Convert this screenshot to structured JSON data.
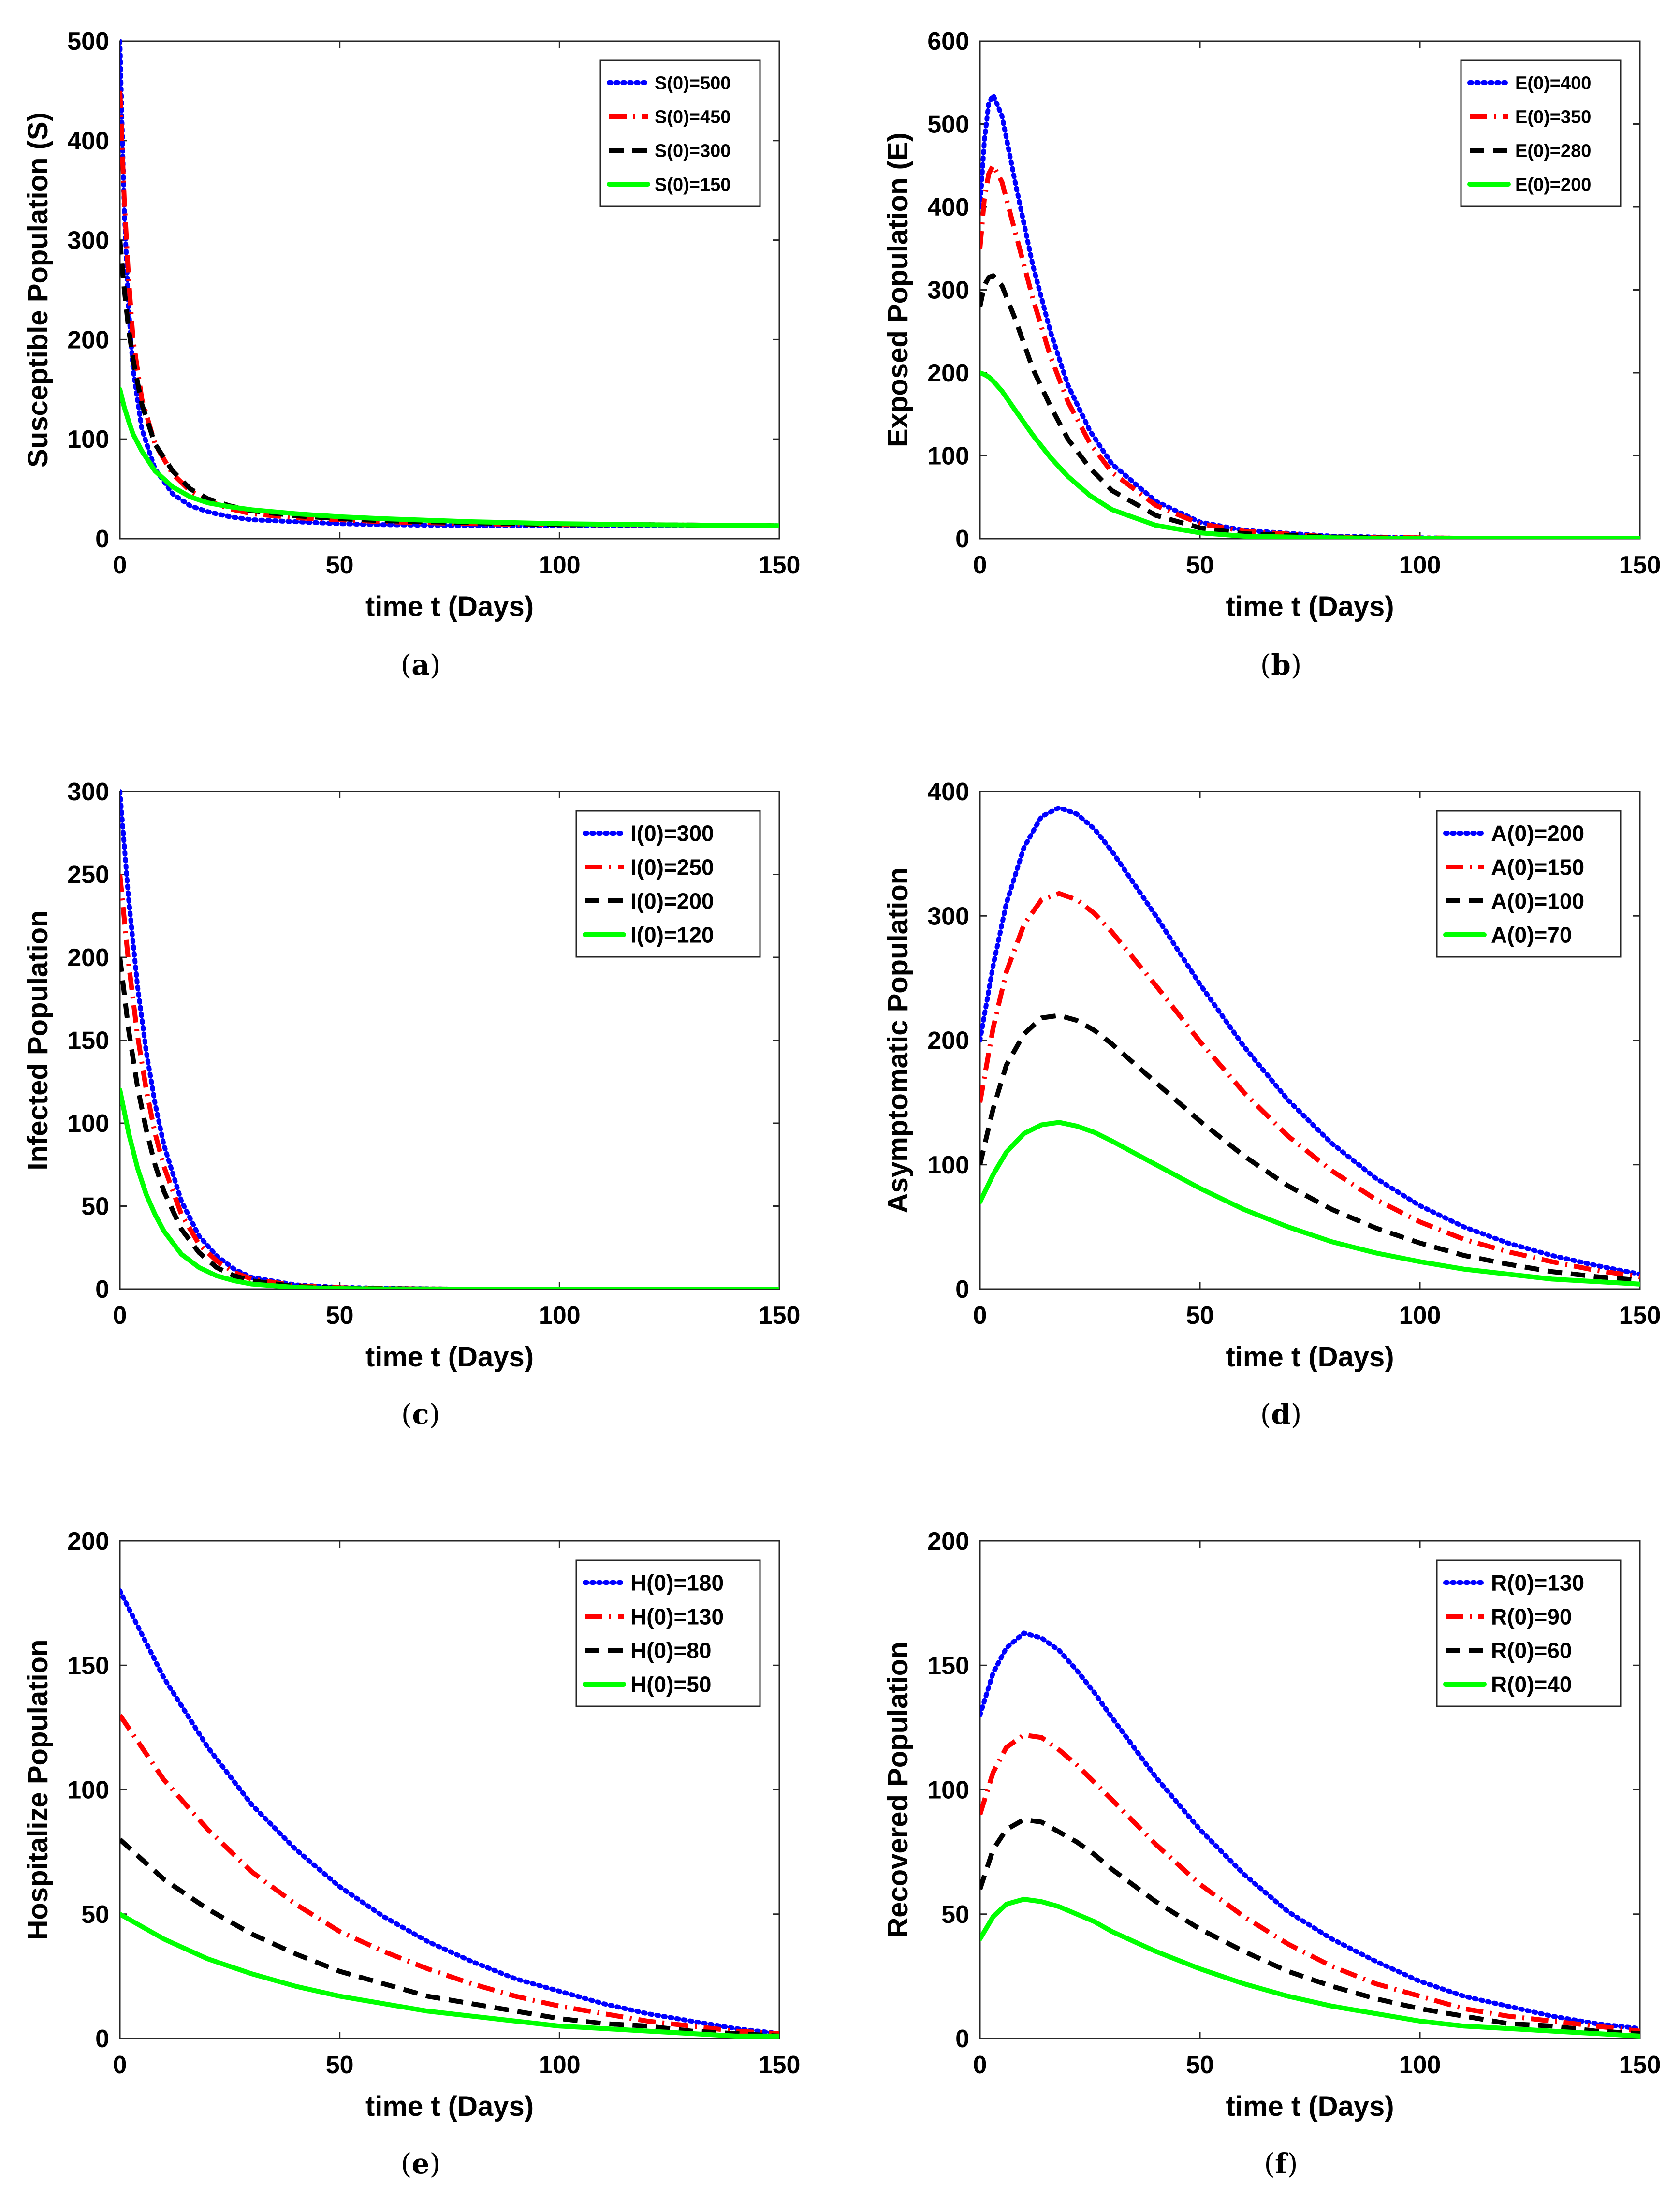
{
  "figure": {
    "colors": {
      "blue": "#0000ff",
      "red": "#ff0000",
      "black": "#000000",
      "green": "#00ff00"
    },
    "line_styles": [
      "dotted",
      "dashdot",
      "dashed",
      "solid"
    ]
  },
  "chart_data": [
    {
      "type": "line",
      "caption_letter": "a",
      "xlabel": "time t (Days)",
      "ylabel": "Susceptible Population (S)",
      "xlim": [
        0,
        150
      ],
      "ylim": [
        0,
        500
      ],
      "xticks": [
        0,
        50,
        100,
        150
      ],
      "yticks": [
        0,
        100,
        200,
        300,
        400,
        500
      ],
      "legend_position": "top-right",
      "x": [
        0,
        1,
        2,
        3,
        5,
        8,
        12,
        16,
        20,
        25,
        30,
        40,
        50,
        60,
        80,
        100,
        120,
        150
      ],
      "series": [
        {
          "name": "S(0)=500",
          "color": "blue",
          "style": "dotted",
          "values": [
            500,
            330,
            230,
            170,
            110,
            70,
            45,
            33,
            27,
            22,
            19,
            17,
            15,
            14,
            13,
            13,
            13,
            13
          ]
        },
        {
          "name": "S(0)=450",
          "color": "red",
          "style": "dashdot",
          "values": [
            450,
            340,
            260,
            200,
            140,
            95,
            65,
            48,
            38,
            30,
            25,
            21,
            19,
            17,
            15,
            14,
            14,
            13
          ]
        },
        {
          "name": "S(0)=300",
          "color": "black",
          "style": "dashed",
          "values": [
            300,
            250,
            210,
            180,
            135,
            95,
            68,
            50,
            40,
            33,
            28,
            23,
            20,
            18,
            16,
            14,
            14,
            13
          ]
        },
        {
          "name": "S(0)=150",
          "color": "green",
          "style": "solid",
          "values": [
            150,
            132,
            118,
            105,
            88,
            68,
            52,
            42,
            36,
            32,
            29,
            25,
            22,
            20,
            17,
            15,
            14,
            13
          ]
        }
      ]
    },
    {
      "type": "line",
      "caption_letter": "b",
      "xlabel": "time t (Days)",
      "ylabel": "Exposed Population (E)",
      "xlim": [
        0,
        150
      ],
      "ylim": [
        0,
        600
      ],
      "xticks": [
        0,
        50,
        100,
        150
      ],
      "yticks": [
        0,
        100,
        200,
        300,
        400,
        500,
        600
      ],
      "legend_position": "top-right",
      "x": [
        0,
        1,
        2,
        3,
        5,
        8,
        12,
        16,
        20,
        25,
        30,
        40,
        50,
        60,
        80,
        100,
        120,
        150
      ],
      "series": [
        {
          "name": "E(0)=400",
          "color": "blue",
          "style": "dotted",
          "values": [
            400,
            480,
            525,
            535,
            510,
            430,
            330,
            250,
            185,
            130,
            90,
            45,
            20,
            10,
            3,
            1,
            0,
            0
          ]
        },
        {
          "name": "E(0)=350",
          "color": "red",
          "style": "dashdot",
          "values": [
            350,
            410,
            440,
            450,
            430,
            370,
            290,
            220,
            165,
            115,
            80,
            40,
            18,
            9,
            2,
            1,
            0,
            0
          ]
        },
        {
          "name": "E(0)=280",
          "color": "black",
          "style": "dashed",
          "values": [
            280,
            305,
            315,
            317,
            305,
            265,
            205,
            160,
            120,
            85,
            58,
            28,
            13,
            6,
            2,
            0,
            0,
            0
          ]
        },
        {
          "name": "E(0)=200",
          "color": "green",
          "style": "solid",
          "values": [
            200,
            198,
            195,
            190,
            178,
            155,
            125,
            98,
            75,
            52,
            35,
            16,
            7,
            3,
            1,
            0,
            0,
            0
          ]
        }
      ]
    },
    {
      "type": "line",
      "caption_letter": "c",
      "xlabel": "time t (Days)",
      "ylabel": "Infected Population",
      "xlim": [
        0,
        150
      ],
      "ylim": [
        0,
        300
      ],
      "xticks": [
        0,
        50,
        100,
        150
      ],
      "yticks": [
        0,
        50,
        100,
        150,
        200,
        250,
        300
      ],
      "legend_position": "top-right",
      "x": [
        0,
        2,
        4,
        6,
        8,
        10,
        14,
        18,
        22,
        26,
        30,
        40,
        50,
        60,
        75,
        100,
        150
      ],
      "series": [
        {
          "name": "I(0)=300",
          "color": "blue",
          "style": "dotted",
          "values": [
            300,
            235,
            183,
            143,
            112,
            87,
            53,
            32,
            20,
            12,
            7,
            2.5,
            1,
            0.5,
            0,
            0,
            0
          ]
        },
        {
          "name": "I(0)=250",
          "color": "red",
          "style": "dashdot",
          "values": [
            250,
            196,
            153,
            120,
            94,
            74,
            45,
            27,
            17,
            10,
            6,
            2,
            0.8,
            0.3,
            0,
            0,
            0
          ]
        },
        {
          "name": "I(0)=200",
          "color": "black",
          "style": "dashed",
          "values": [
            200,
            156,
            122,
            96,
            75,
            59,
            36,
            22,
            13,
            8,
            5,
            1.5,
            0.5,
            0.2,
            0,
            0,
            0
          ]
        },
        {
          "name": "I(0)=120",
          "color": "green",
          "style": "solid",
          "values": [
            120,
            94,
            73,
            57,
            45,
            35,
            21,
            13,
            8,
            5,
            3,
            1,
            0.3,
            0.1,
            0,
            0,
            0
          ]
        }
      ]
    },
    {
      "type": "line",
      "caption_letter": "d",
      "xlabel": "time t (Days)",
      "ylabel": "Asymptomatic Population",
      "xlim": [
        0,
        150
      ],
      "ylim": [
        0,
        400
      ],
      "xticks": [
        0,
        50,
        100,
        150
      ],
      "yticks": [
        0,
        100,
        200,
        300,
        400
      ],
      "legend_position": "top-right",
      "x": [
        0,
        3,
        6,
        10,
        14,
        18,
        22,
        26,
        30,
        40,
        50,
        60,
        70,
        80,
        90,
        100,
        110,
        120,
        130,
        140,
        150
      ],
      "series": [
        {
          "name": "A(0)=200",
          "color": "blue",
          "style": "dotted",
          "values": [
            200,
            260,
            310,
            355,
            380,
            387,
            382,
            370,
            352,
            300,
            245,
            195,
            152,
            117,
            89,
            67,
            50,
            37,
            27,
            19,
            12
          ]
        },
        {
          "name": "A(0)=150",
          "color": "red",
          "style": "dashdot",
          "values": [
            150,
            210,
            255,
            293,
            313,
            318,
            313,
            302,
            287,
            244,
            199,
            158,
            123,
            95,
            72,
            54,
            40,
            30,
            22,
            15,
            10
          ]
        },
        {
          "name": "A(0)=100",
          "color": "black",
          "style": "dashed",
          "values": [
            100,
            145,
            180,
            205,
            218,
            220,
            216,
            208,
            197,
            166,
            135,
            107,
            83,
            64,
            49,
            37,
            27,
            20,
            14,
            10,
            7
          ]
        },
        {
          "name": "A(0)=70",
          "color": "green",
          "style": "solid",
          "values": [
            70,
            92,
            110,
            125,
            132,
            134,
            131,
            126,
            119,
            100,
            81,
            64,
            50,
            38,
            29,
            22,
            16,
            12,
            8,
            6,
            4
          ]
        }
      ]
    },
    {
      "type": "line",
      "caption_letter": "e",
      "xlabel": "time t (Days)",
      "ylabel": "Hospitalize Population",
      "xlim": [
        0,
        150
      ],
      "ylim": [
        0,
        200
      ],
      "xticks": [
        0,
        50,
        100,
        150
      ],
      "yticks": [
        0,
        50,
        100,
        150,
        200
      ],
      "legend_position": "top-right",
      "x": [
        0,
        10,
        20,
        30,
        40,
        50,
        60,
        70,
        80,
        90,
        100,
        110,
        120,
        130,
        140,
        150
      ],
      "series": [
        {
          "name": "H(0)=180",
          "color": "blue",
          "style": "dotted",
          "values": [
            180,
            145,
            117,
            94,
            76,
            61,
            49,
            39,
            31,
            24,
            19,
            14,
            10,
            7,
            4,
            2
          ]
        },
        {
          "name": "H(0)=130",
          "color": "red",
          "style": "dashdot",
          "values": [
            130,
            104,
            84,
            67,
            54,
            43,
            35,
            28,
            22,
            17,
            13,
            10,
            7,
            5,
            3,
            2
          ]
        },
        {
          "name": "H(0)=80",
          "color": "black",
          "style": "dashed",
          "values": [
            80,
            64,
            52,
            42,
            34,
            27,
            22,
            17,
            14,
            11,
            8,
            6,
            5,
            3,
            2,
            1
          ]
        },
        {
          "name": "H(0)=50",
          "color": "green",
          "style": "solid",
          "values": [
            50,
            40,
            32,
            26,
            21,
            17,
            14,
            11,
            9,
            7,
            5,
            4,
            3,
            2,
            1,
            1
          ]
        }
      ]
    },
    {
      "type": "line",
      "caption_letter": "f",
      "xlabel": "time t (Days)",
      "ylabel": "Recovered Population",
      "xlim": [
        0,
        150
      ],
      "ylim": [
        0,
        200
      ],
      "xticks": [
        0,
        50,
        100,
        150
      ],
      "yticks": [
        0,
        50,
        100,
        150,
        200
      ],
      "legend_position": "top-right",
      "x": [
        0,
        3,
        6,
        10,
        14,
        18,
        22,
        26,
        30,
        40,
        50,
        60,
        70,
        80,
        90,
        100,
        110,
        120,
        130,
        140,
        150
      ],
      "series": [
        {
          "name": "R(0)=130",
          "color": "blue",
          "style": "dotted",
          "values": [
            130,
            147,
            157,
            163,
            161,
            156,
            148,
            139,
            129,
            105,
            84,
            66,
            51,
            40,
            31,
            23,
            17,
            13,
            9,
            6,
            4
          ]
        },
        {
          "name": "R(0)=90",
          "color": "red",
          "style": "dashdot",
          "values": [
            90,
            107,
            117,
            122,
            121,
            116,
            110,
            103,
            96,
            78,
            62,
            49,
            38,
            29,
            22,
            17,
            12,
            9,
            7,
            5,
            3
          ]
        },
        {
          "name": "R(0)=60",
          "color": "black",
          "style": "dashed",
          "values": [
            60,
            76,
            84,
            88,
            87,
            83,
            79,
            74,
            68,
            55,
            44,
            35,
            27,
            21,
            16,
            12,
            9,
            6,
            5,
            3,
            2
          ]
        },
        {
          "name": "R(0)=40",
          "color": "green",
          "style": "solid",
          "values": [
            40,
            49,
            54,
            56,
            55,
            53,
            50,
            47,
            43,
            35,
            28,
            22,
            17,
            13,
            10,
            7,
            5,
            4,
            3,
            2,
            1
          ]
        }
      ]
    }
  ]
}
